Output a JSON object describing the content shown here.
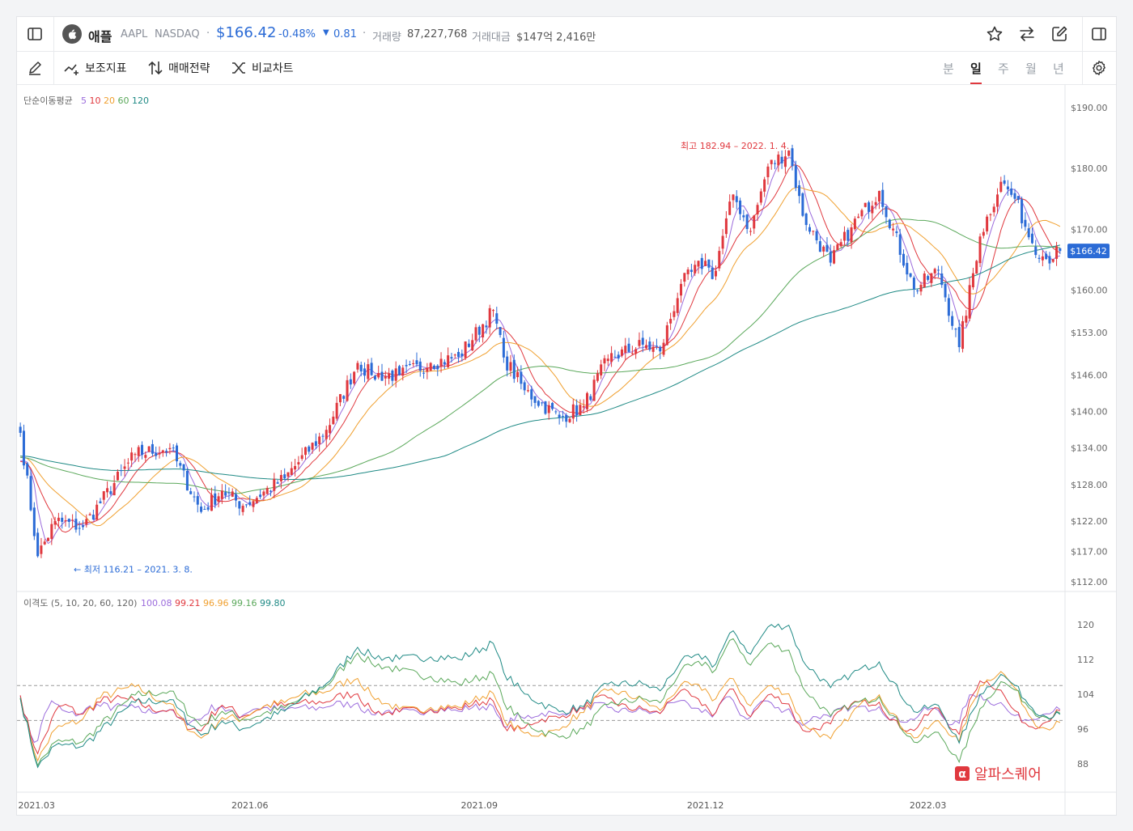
{
  "header": {
    "name": "애플",
    "ticker": "AAPL",
    "exchange": "NASDAQ",
    "price": "$166.42",
    "change_pct": "-0.48%",
    "change_abs": "0.81",
    "volume_label": "거래량",
    "volume": "87,227,768",
    "value_label": "거래대금",
    "value": "$147억 2,416만"
  },
  "toolbar": {
    "indicator_label": "보조지표",
    "strategy_label": "매매전략",
    "compare_label": "비교차트",
    "timeframes": [
      "분",
      "일",
      "주",
      "월",
      "년"
    ],
    "active_timeframe": "일"
  },
  "chart_data": [
    {
      "type": "candlestick",
      "title": "",
      "legend_label": "단순이동평균",
      "ma_periods": [
        "5",
        "10",
        "20",
        "60",
        "120"
      ],
      "ma_colors": [
        "#9b6bdc",
        "#e0383e",
        "#f0a030",
        "#5aa85a",
        "#1f8a85"
      ],
      "x_labels": [
        "2021.03",
        "2021.06",
        "2021.09",
        "2021.12",
        "2022.03"
      ],
      "y_ticks": [
        "$190.00",
        "$180.00",
        "$170.00",
        "$160.00",
        "$153.00",
        "$146.00",
        "$140.00",
        "$134.00",
        "$128.00",
        "$122.00",
        "$117.00",
        "$112.00"
      ],
      "ylim": [
        112,
        190
      ],
      "current_price_label": "$166.42",
      "current_price": 166.42,
      "high_annotation": "최고 182.94 – 2022. 1. 4.",
      "low_annotation": "← 최저 116.21 – 2021. 3. 8.",
      "anchors": [
        [
          "2021-03-01",
          136.5
        ],
        [
          "2021-03-08",
          116.21
        ],
        [
          "2021-03-15",
          122
        ],
        [
          "2021-03-25",
          121
        ],
        [
          "2021-04-15",
          133
        ],
        [
          "2021-04-29",
          134
        ],
        [
          "2021-05-12",
          123.5
        ],
        [
          "2021-05-20",
          127
        ],
        [
          "2021-05-28",
          124.5
        ],
        [
          "2021-06-15",
          129
        ],
        [
          "2021-07-01",
          137
        ],
        [
          "2021-07-14",
          148
        ],
        [
          "2021-07-20",
          146
        ],
        [
          "2021-07-30",
          146
        ],
        [
          "2021-08-12",
          148
        ],
        [
          "2021-08-24",
          149
        ],
        [
          "2021-09-07",
          156.7
        ],
        [
          "2021-09-10",
          148.9
        ],
        [
          "2021-09-20",
          143.5
        ],
        [
          "2021-10-04",
          139
        ],
        [
          "2021-10-13",
          140.9
        ],
        [
          "2021-10-22",
          148.7
        ],
        [
          "2021-11-05",
          151
        ],
        [
          "2021-11-12",
          149.9
        ],
        [
          "2021-11-22",
          161
        ],
        [
          "2021-12-01",
          164.8
        ],
        [
          "2021-12-03",
          161.8
        ],
        [
          "2021-12-13",
          175.7
        ],
        [
          "2021-12-20",
          169.7
        ],
        [
          "2021-12-27",
          180.3
        ],
        [
          "2022-01-04",
          182.94
        ],
        [
          "2022-01-10",
          172.2
        ],
        [
          "2022-01-20",
          164.5
        ],
        [
          "2022-01-28",
          170.3
        ],
        [
          "2022-02-09",
          176.3
        ],
        [
          "2022-02-23",
          160.1
        ],
        [
          "2022-03-04",
          163.2
        ],
        [
          "2022-03-14",
          150.6
        ],
        [
          "2022-03-22",
          168.8
        ],
        [
          "2022-03-30",
          177.8
        ],
        [
          "2022-04-05",
          175
        ],
        [
          "2022-04-12",
          167.7
        ],
        [
          "2022-04-18",
          165.1
        ],
        [
          "2022-04-22",
          166.42
        ]
      ]
    },
    {
      "type": "line",
      "title": "",
      "legend_label": "이격도 (5, 10, 20, 60, 120)",
      "legend_values": [
        "100.08",
        "99.21",
        "96.96",
        "99.16",
        "99.80"
      ],
      "series_colors": [
        "#9b6bdc",
        "#e0383e",
        "#f0a030",
        "#5aa85a",
        "#1f8a85"
      ],
      "y_ticks": [
        "120",
        "112",
        "104",
        "96",
        "88"
      ],
      "ylim": [
        86,
        122
      ],
      "reference_lines": [
        106,
        98
      ]
    }
  ],
  "watermark": {
    "symbol": "α",
    "text": "알파스퀘어"
  }
}
